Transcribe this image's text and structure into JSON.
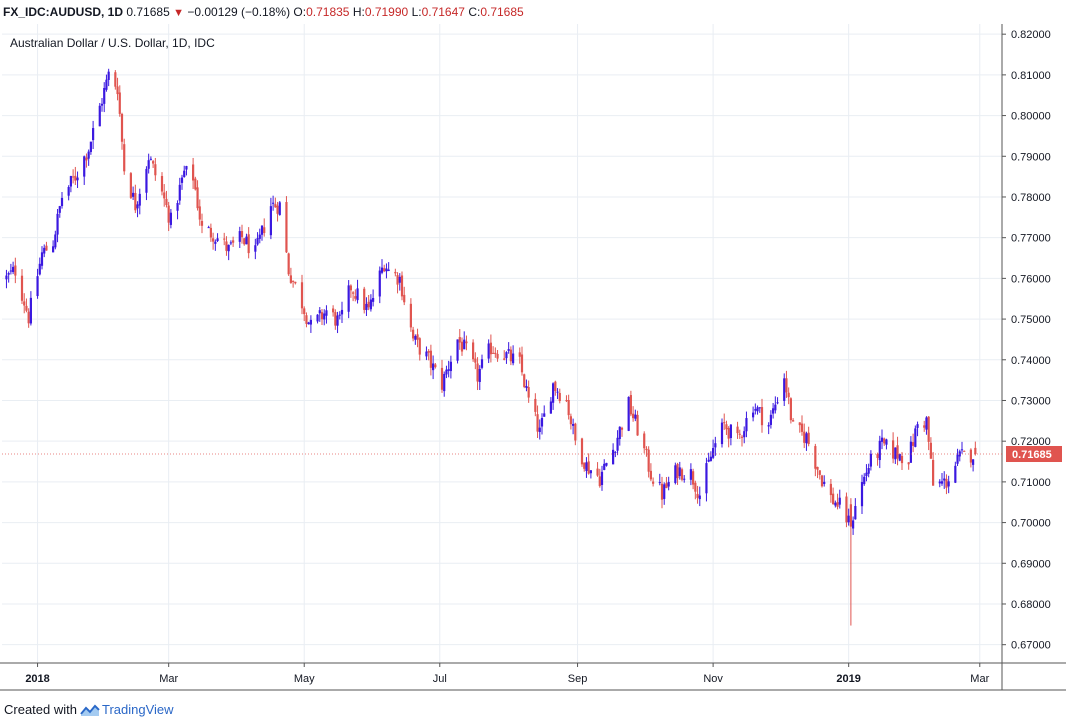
{
  "header": {
    "symbol": "FX_IDC:AUDUSD, 1D",
    "last": "0.71685",
    "change": "−0.00129 (−0.18%)",
    "o_label": "O:",
    "o": "0.71835",
    "h_label": "H:",
    "h": "0.71990",
    "l_label": "L:",
    "l": "0.71647",
    "c_label": "C:",
    "c": "0.71685"
  },
  "footer": {
    "created_with": "Created with",
    "brand": "TradingView"
  },
  "colors": {
    "up": "#3a18e0",
    "down": "#e0544f",
    "grid": "#e9eef3",
    "last_badge": "#e0544f"
  },
  "chart_data": {
    "type": "candlestick",
    "title": "Australian Dollar / U.S. Dollar, 1D, IDC",
    "ylim": [
      0.6655,
      0.8225
    ],
    "yticks": [
      0.82,
      0.81,
      0.8,
      0.79,
      0.78,
      0.77,
      0.76,
      0.75,
      0.74,
      0.73,
      0.72,
      0.71,
      0.7,
      0.69,
      0.68,
      0.67
    ],
    "ytick_labels": [
      "0.82000",
      "0.81000",
      "0.80000",
      "0.79000",
      "0.78000",
      "0.77000",
      "0.76000",
      "0.75000",
      "0.74000",
      "0.73000",
      "0.72000",
      "0.71000",
      "0.70000",
      "0.69000",
      "0.68000",
      "0.67000"
    ],
    "xlim": [
      "2017-12-16",
      "2019-03-11"
    ],
    "xticks": [
      {
        "date": "2018-01-01",
        "label": "2018",
        "bold": true
      },
      {
        "date": "2018-03-01",
        "label": "Mar",
        "bold": false
      },
      {
        "date": "2018-05-01",
        "label": "May",
        "bold": false
      },
      {
        "date": "2018-07-01",
        "label": "Jul",
        "bold": false
      },
      {
        "date": "2018-09-01",
        "label": "Sep",
        "bold": false
      },
      {
        "date": "2018-11-01",
        "label": "Nov",
        "bold": false
      },
      {
        "date": "2019-01-01",
        "label": "2019",
        "bold": true
      },
      {
        "date": "2019-03-01",
        "label": "Mar",
        "bold": false
      }
    ],
    "last_price": 0.71685,
    "last_price_label": "0.71685",
    "close_anchors": [
      [
        "2017-12-18",
        0.76
      ],
      [
        "2017-12-22",
        0.762
      ],
      [
        "2017-12-28",
        0.7505
      ],
      [
        "2018-01-03",
        0.766
      ],
      [
        "2018-01-08",
        0.769
      ],
      [
        "2018-01-12",
        0.78
      ],
      [
        "2018-01-18",
        0.785
      ],
      [
        "2018-01-24",
        0.792
      ],
      [
        "2018-01-29",
        0.802
      ],
      [
        "2018-02-02",
        0.81
      ],
      [
        "2018-02-06",
        0.807
      ],
      [
        "2018-02-09",
        0.787
      ],
      [
        "2018-02-14",
        0.778
      ],
      [
        "2018-02-20",
        0.79
      ],
      [
        "2018-02-26",
        0.781
      ],
      [
        "2018-03-02",
        0.774
      ],
      [
        "2018-03-08",
        0.786
      ],
      [
        "2018-03-12",
        0.785
      ],
      [
        "2018-03-16",
        0.772
      ],
      [
        "2018-03-21",
        0.771
      ],
      [
        "2018-03-28",
        0.767
      ],
      [
        "2018-04-03",
        0.77
      ],
      [
        "2018-04-09",
        0.766
      ],
      [
        "2018-04-16",
        0.778
      ],
      [
        "2018-04-20",
        0.778
      ],
      [
        "2018-04-24",
        0.762
      ],
      [
        "2018-04-30",
        0.754
      ],
      [
        "2018-05-04",
        0.748
      ],
      [
        "2018-05-11",
        0.752
      ],
      [
        "2018-05-17",
        0.749
      ],
      [
        "2018-05-22",
        0.758
      ],
      [
        "2018-05-30",
        0.752
      ],
      [
        "2018-06-06",
        0.764
      ],
      [
        "2018-06-08",
        0.762
      ],
      [
        "2018-06-13",
        0.76
      ],
      [
        "2018-06-19",
        0.745
      ],
      [
        "2018-06-26",
        0.74
      ],
      [
        "2018-07-02",
        0.734
      ],
      [
        "2018-07-09",
        0.745
      ],
      [
        "2018-07-13",
        0.742
      ],
      [
        "2018-07-18",
        0.736
      ],
      [
        "2018-07-24",
        0.743
      ],
      [
        "2018-07-31",
        0.741
      ],
      [
        "2018-08-06",
        0.739
      ],
      [
        "2018-08-10",
        0.73
      ],
      [
        "2018-08-15",
        0.722
      ],
      [
        "2018-08-21",
        0.734
      ],
      [
        "2018-08-27",
        0.73
      ],
      [
        "2018-08-31",
        0.72
      ],
      [
        "2018-09-05",
        0.714
      ],
      [
        "2018-09-11",
        0.711
      ],
      [
        "2018-09-17",
        0.718
      ],
      [
        "2018-09-24",
        0.729
      ],
      [
        "2018-09-28",
        0.723
      ],
      [
        "2018-10-04",
        0.712
      ],
      [
        "2018-10-09",
        0.707
      ],
      [
        "2018-10-16",
        0.713
      ],
      [
        "2018-10-22",
        0.712
      ],
      [
        "2018-10-26",
        0.707
      ],
      [
        "2018-11-01",
        0.718
      ],
      [
        "2018-11-06",
        0.724
      ],
      [
        "2018-11-12",
        0.72
      ],
      [
        "2018-11-19",
        0.729
      ],
      [
        "2018-11-26",
        0.724
      ],
      [
        "2018-12-03",
        0.736
      ],
      [
        "2018-12-07",
        0.723
      ],
      [
        "2018-12-13",
        0.721
      ],
      [
        "2018-12-19",
        0.712
      ],
      [
        "2018-12-24",
        0.706
      ],
      [
        "2018-12-28",
        0.704
      ],
      [
        "2019-01-02",
        0.699
      ],
      [
        "2019-01-04",
        0.705
      ],
      [
        "2019-01-10",
        0.714
      ],
      [
        "2019-01-16",
        0.719
      ],
      [
        "2019-01-22",
        0.717
      ],
      [
        "2019-01-28",
        0.716
      ],
      [
        "2019-02-01",
        0.724
      ],
      [
        "2019-02-05",
        0.725
      ],
      [
        "2019-02-08",
        0.709
      ],
      [
        "2019-02-14",
        0.71
      ],
      [
        "2019-02-20",
        0.716
      ],
      [
        "2019-02-26",
        0.717
      ],
      [
        "2019-02-27",
        0.71685
      ]
    ],
    "special_candles": [
      {
        "date": "2019-01-02",
        "open": 0.7045,
        "high": 0.706,
        "low": 0.6747,
        "close": 0.699
      }
    ]
  }
}
